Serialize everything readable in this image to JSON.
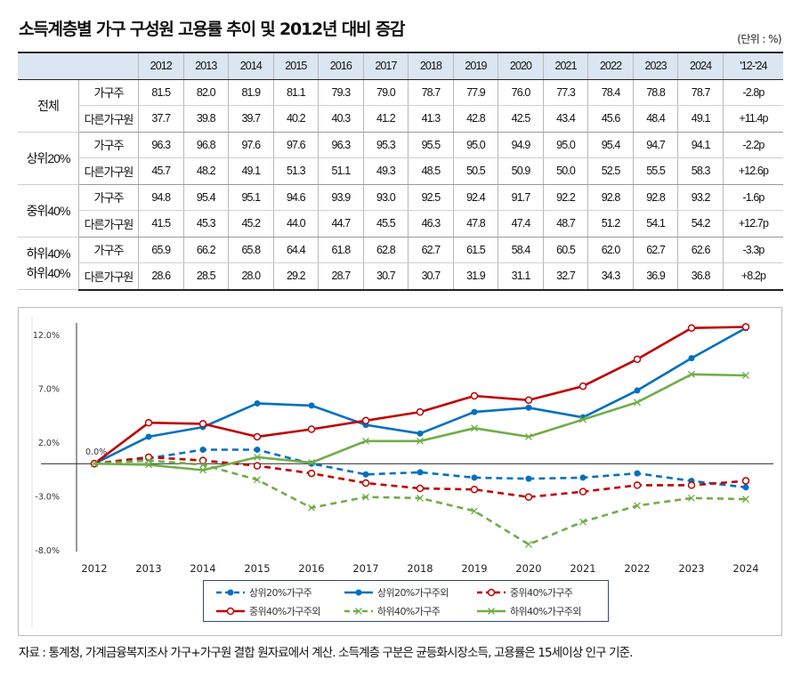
{
  "title": "소득계층별 가구 구성원 고용률 추이 및 2012년 대비 증감",
  "unit": "(단위 : %)",
  "table": {
    "columns": [
      "2012",
      "2013",
      "2014",
      "2015",
      "2016",
      "2017",
      "2018",
      "2019",
      "2020",
      "2021",
      "2022",
      "2023",
      "2024",
      "'12-'24"
    ],
    "groups": [
      {
        "label": "전체",
        "rows": [
          {
            "label": "가구주",
            "values": [
              "81.5",
              "82.0",
              "81.9",
              "81.1",
              "79.3",
              "79.0",
              "78.7",
              "77.9",
              "76.0",
              "77.3",
              "78.4",
              "78.8",
              "78.7",
              "-2.8p"
            ]
          },
          {
            "label": "다른가구원",
            "values": [
              "37.7",
              "39.8",
              "39.7",
              "40.2",
              "40.3",
              "41.2",
              "41.3",
              "42.8",
              "42.5",
              "43.4",
              "45.6",
              "48.4",
              "49.1",
              "+11.4p"
            ]
          }
        ]
      },
      {
        "label": "상위20%",
        "rows": [
          {
            "label": "가구주",
            "values": [
              "96.3",
              "96.8",
              "97.6",
              "97.6",
              "96.3",
              "95.3",
              "95.5",
              "95.0",
              "94.9",
              "95.0",
              "95.4",
              "94.7",
              "94.1",
              "-2.2p"
            ]
          },
          {
            "label": "다른가구원",
            "values": [
              "45.7",
              "48.2",
              "49.1",
              "51.3",
              "51.1",
              "49.3",
              "48.5",
              "50.5",
              "50.9",
              "50.0",
              "52.5",
              "55.5",
              "58.3",
              "+12.6p"
            ]
          }
        ]
      },
      {
        "label": "중위40%",
        "rows": [
          {
            "label": "가구주",
            "values": [
              "94.8",
              "95.4",
              "95.1",
              "94.6",
              "93.9",
              "93.0",
              "92.5",
              "92.4",
              "91.7",
              "92.2",
              "92.8",
              "92.8",
              "93.2",
              "-1.6p"
            ]
          },
          {
            "label": "다른가구원",
            "values": [
              "41.5",
              "45.3",
              "45.2",
              "44.0",
              "44.7",
              "45.5",
              "46.3",
              "47.8",
              "47.4",
              "48.7",
              "51.2",
              "54.1",
              "54.2",
              "+12.7p"
            ]
          }
        ]
      },
      {
        "label": "하위40%\n하위40%",
        "rows": [
          {
            "label": "가구주",
            "values": [
              "65.9",
              "66.2",
              "65.8",
              "64.4",
              "61.8",
              "62.8",
              "62.7",
              "61.5",
              "58.4",
              "60.5",
              "62.0",
              "62.7",
              "62.6",
              "-3.3p"
            ]
          },
          {
            "label": "다른가구원",
            "values": [
              "28.6",
              "28.5",
              "28.0",
              "29.2",
              "28.7",
              "30.7",
              "30.7",
              "31.9",
              "31.1",
              "32.7",
              "34.3",
              "36.9",
              "36.8",
              "+8.2p"
            ]
          }
        ]
      }
    ]
  },
  "chart_data": {
    "type": "line",
    "title": "",
    "xlabel": "",
    "ylabel": "",
    "x": [
      "2012",
      "2013",
      "2014",
      "2015",
      "2016",
      "2017",
      "2018",
      "2019",
      "2020",
      "2021",
      "2022",
      "2023",
      "2024"
    ],
    "ylim": [
      -8.0,
      12.0
    ],
    "yticks": [
      12.0,
      7.0,
      2.0,
      -3.0,
      -8.0
    ],
    "ytick_labels": [
      "12.0%",
      "7.0%",
      "2.0%",
      "-3.0%",
      "-8.0%"
    ],
    "grid": false,
    "legend_position": "bottom",
    "annotations": [
      {
        "x": "2012",
        "y": 0.0,
        "text": "0.0%"
      }
    ],
    "series": [
      {
        "name": "상위20%가구주",
        "color": "#0070c0",
        "dash": true,
        "marker": "dot",
        "values": [
          0,
          0.5,
          1.3,
          1.3,
          0.0,
          -1.0,
          -0.8,
          -1.3,
          -1.4,
          -1.3,
          -0.9,
          -1.6,
          -2.2
        ]
      },
      {
        "name": "상위20%가구주외",
        "color": "#0070c0",
        "dash": false,
        "marker": "dot",
        "values": [
          0,
          2.5,
          3.4,
          5.6,
          5.4,
          3.6,
          2.8,
          4.8,
          5.2,
          4.3,
          6.8,
          9.8,
          12.6
        ]
      },
      {
        "name": "중위40%가구주",
        "color": "#c00000",
        "dash": true,
        "marker": "circle",
        "values": [
          0,
          0.6,
          0.3,
          -0.2,
          -0.9,
          -1.8,
          -2.3,
          -2.4,
          -3.1,
          -2.6,
          -2.0,
          -2.0,
          -1.6
        ]
      },
      {
        "name": "중위40%가구주외",
        "color": "#c00000",
        "dash": false,
        "marker": "circle",
        "values": [
          0,
          3.8,
          3.7,
          2.5,
          3.2,
          4.0,
          4.8,
          6.3,
          5.9,
          7.2,
          9.7,
          12.6,
          12.7
        ]
      },
      {
        "name": "하위40%가구주",
        "color": "#70ad47",
        "dash": true,
        "marker": "x",
        "values": [
          0,
          0.3,
          -0.1,
          -1.5,
          -4.1,
          -3.1,
          -3.2,
          -4.4,
          -7.5,
          -5.4,
          -3.9,
          -3.2,
          -3.3
        ]
      },
      {
        "name": "하위40%가구주외",
        "color": "#70ad47",
        "dash": false,
        "marker": "x",
        "values": [
          0,
          -0.1,
          -0.6,
          0.6,
          0.1,
          2.1,
          2.1,
          3.3,
          2.5,
          4.1,
          5.7,
          8.3,
          8.2
        ]
      }
    ]
  },
  "footnote": "자료 : 통계청, 가계금융복지조사 가구+가구원 결합 원자료에서 계산. 소득계층 구분은 균등화시장소득, 고용률은 15세이상 인구 기준."
}
